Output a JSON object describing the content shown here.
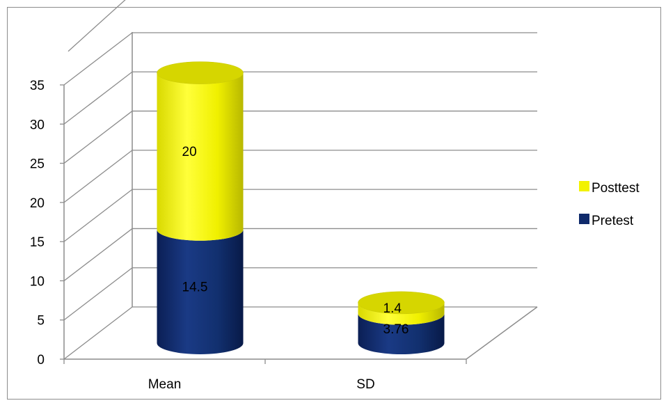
{
  "chart_data": {
    "type": "bar",
    "stacked": true,
    "three_d": true,
    "shape": "cylinder",
    "categories": [
      "Mean",
      "SD"
    ],
    "series": [
      {
        "name": "Pretest",
        "values": [
          14.5,
          3.76
        ],
        "color": "#0f2a6b"
      },
      {
        "name": "Posttest",
        "values": [
          20,
          1.4
        ],
        "color": "#f2f200"
      }
    ],
    "ylim": [
      0,
      35
    ],
    "yticks": [
      0,
      5,
      10,
      15,
      20,
      25,
      30,
      35
    ],
    "grid": true,
    "legend": "right",
    "title": "",
    "xlabel": "",
    "ylabel": ""
  }
}
